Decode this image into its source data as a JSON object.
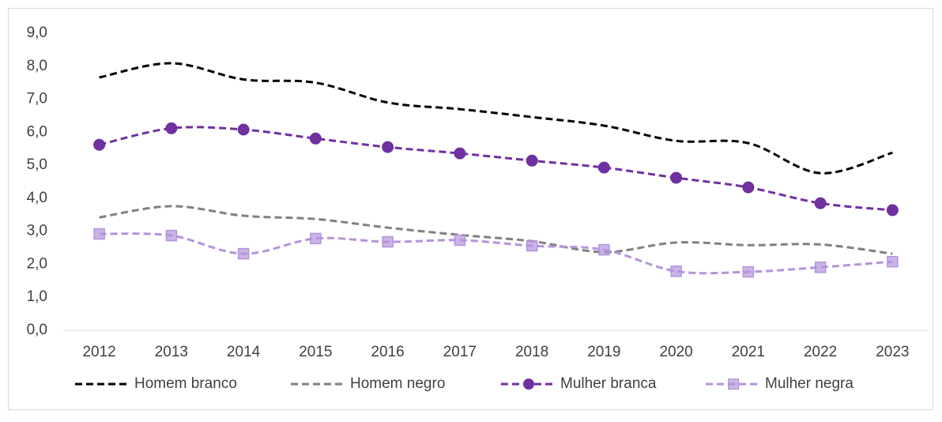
{
  "chart_data": {
    "type": "line",
    "categories": [
      "2012",
      "2013",
      "2014",
      "2015",
      "2016",
      "2017",
      "2018",
      "2019",
      "2020",
      "2021",
      "2022",
      "2023"
    ],
    "series": [
      {
        "name": "Homem branco",
        "color": "#000000",
        "marker": null,
        "values": [
          7.66,
          8.09,
          7.6,
          7.5,
          6.9,
          6.7,
          6.46,
          6.2,
          5.74,
          5.67,
          4.76,
          5.38
        ]
      },
      {
        "name": "Homem negro",
        "color": "#808080",
        "marker": null,
        "values": [
          3.42,
          3.76,
          3.47,
          3.37,
          3.11,
          2.89,
          2.7,
          2.37,
          2.66,
          2.58,
          2.6,
          2.32
        ]
      },
      {
        "name": "Mulher branca",
        "color": "#7030a0",
        "marker": "circle",
        "values": [
          5.62,
          6.12,
          6.08,
          5.81,
          5.55,
          5.36,
          5.14,
          4.93,
          4.62,
          4.33,
          3.85,
          3.64
        ]
      },
      {
        "name": "Mulher negra",
        "color": "#b494dc",
        "marker": "square",
        "values": [
          2.92,
          2.87,
          2.32,
          2.78,
          2.68,
          2.73,
          2.56,
          2.44,
          1.79,
          1.77,
          1.91,
          2.08
        ]
      }
    ],
    "ylim": [
      0,
      9
    ],
    "yticks": [
      {
        "value": 0,
        "label": "0,0"
      },
      {
        "value": 1,
        "label": "1,0"
      },
      {
        "value": 2,
        "label": "2,0"
      },
      {
        "value": 3,
        "label": "3,0"
      },
      {
        "value": 4,
        "label": "4,0"
      },
      {
        "value": 5,
        "label": "5,0"
      },
      {
        "value": 6,
        "label": "6,0"
      },
      {
        "value": 7,
        "label": "7,0"
      },
      {
        "value": 8,
        "label": "8,0"
      },
      {
        "value": 9,
        "label": "9,0"
      }
    ],
    "grid": false,
    "line_style": "dashed",
    "legend": "bottom"
  }
}
